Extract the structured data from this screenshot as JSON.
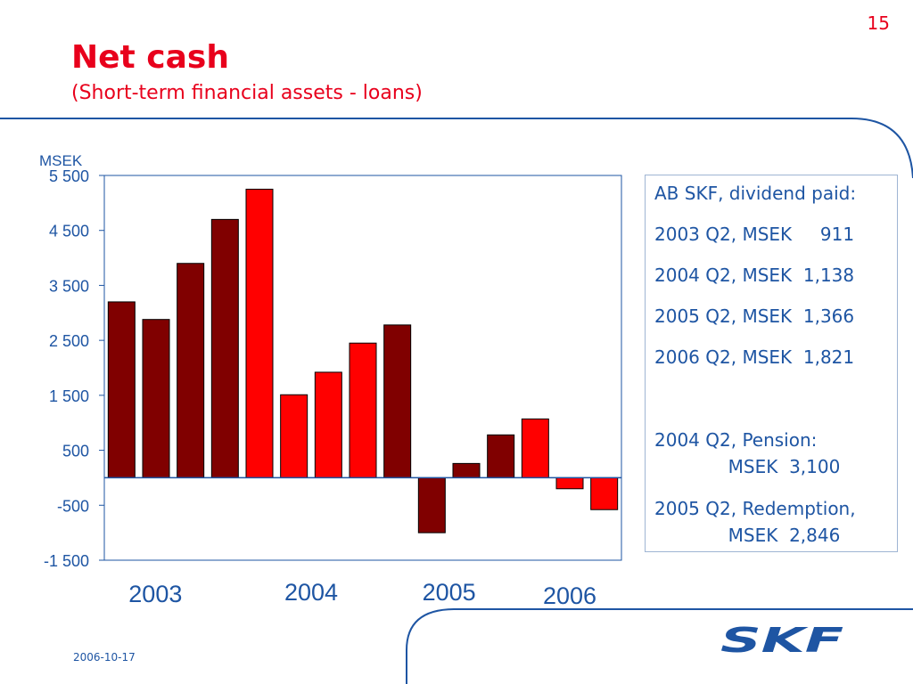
{
  "page_number": "15",
  "title": "Net cash",
  "subtitle": "(Short-term financial assets - loans)",
  "side_box": {
    "lines": [
      "AB SKF, dividend paid:",
      "2003 Q2, MSEK     911",
      "2004 Q2, MSEK  1,138",
      "2005 Q2, MSEK  1,366",
      "2006 Q2, MSEK  1,821",
      "2004 Q2, Pension:",
      "             MSEK  3,100",
      "2005 Q2, Redemption,",
      "             MSEK  2,846"
    ]
  },
  "footer": {
    "date": "2006-10-17"
  },
  "logo": {
    "text": "SKF"
  },
  "colors": {
    "accent": "#e8001c",
    "blue": "#1e55a3",
    "dark_bar": "#800000",
    "bright_bar": "#ff0000"
  },
  "chart_data": {
    "type": "bar",
    "ylabel": "MSEK",
    "ylim": [
      -1500,
      5500
    ],
    "yticks": [
      5500,
      4500,
      3500,
      2500,
      1500,
      500,
      -500,
      -1500
    ],
    "ytick_labels": [
      "5 500",
      "4 500",
      "3 500",
      "2 500",
      "1 500",
      "500",
      "-500",
      "-1 500"
    ],
    "year_labels": [
      "2003",
      "2004",
      "2005",
      "2006"
    ],
    "bars": [
      {
        "value": 3200,
        "highlight": false
      },
      {
        "value": 2880,
        "highlight": false
      },
      {
        "value": 3900,
        "highlight": false
      },
      {
        "value": 4700,
        "highlight": false
      },
      {
        "value": 5250,
        "highlight": true
      },
      {
        "value": 1510,
        "highlight": true
      },
      {
        "value": 1920,
        "highlight": true
      },
      {
        "value": 2450,
        "highlight": true
      },
      {
        "value": 2780,
        "highlight": false
      },
      {
        "value": -1000,
        "highlight": false
      },
      {
        "value": 260,
        "highlight": false
      },
      {
        "value": 780,
        "highlight": false
      },
      {
        "value": 1070,
        "highlight": true
      },
      {
        "value": -200,
        "highlight": true
      },
      {
        "value": -580,
        "highlight": true
      }
    ],
    "grid": false,
    "legend": "none"
  }
}
